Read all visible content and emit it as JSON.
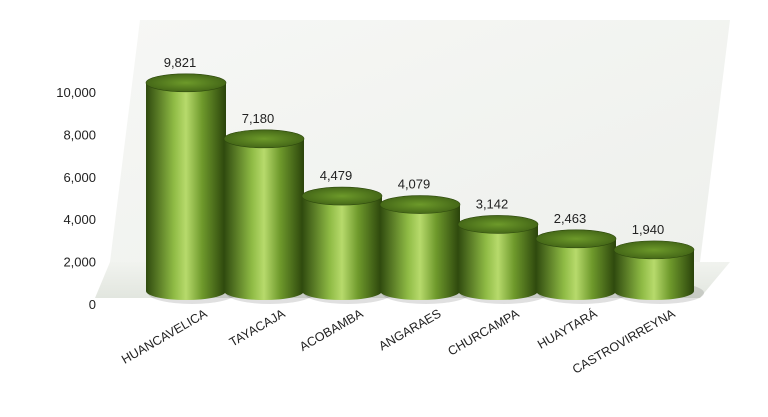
{
  "chart_data": {
    "type": "bar",
    "style": "3d-cylinder",
    "title": "",
    "xlabel": "",
    "ylabel": "",
    "categories": [
      "HUANCAVELICA",
      "TAYACAJA",
      "ACOBAMBA",
      "ANGARAES",
      "CHURCAMPA",
      "HUAYTARÁ",
      "CASTROVIRREYNA"
    ],
    "values": [
      9821,
      7180,
      4479,
      4079,
      3142,
      2463,
      1940
    ],
    "data_labels": [
      "9,821",
      "7,180",
      "4,479",
      "4,079",
      "3,142",
      "2,463",
      "1,940"
    ],
    "y_ticks": [
      "0",
      "2,000",
      "4,000",
      "6,000",
      "8,000",
      "10,000"
    ],
    "ylim": [
      0,
      10000
    ],
    "grid": false,
    "legend": "none",
    "colors": {
      "bar_light": "#b7da6c",
      "bar_mid": "#6f9a2c",
      "bar_dark": "#2f4a0e",
      "bar_top": "#5f8a22",
      "floor": "#e9ece6",
      "wall": "#f4f5f3"
    }
  }
}
